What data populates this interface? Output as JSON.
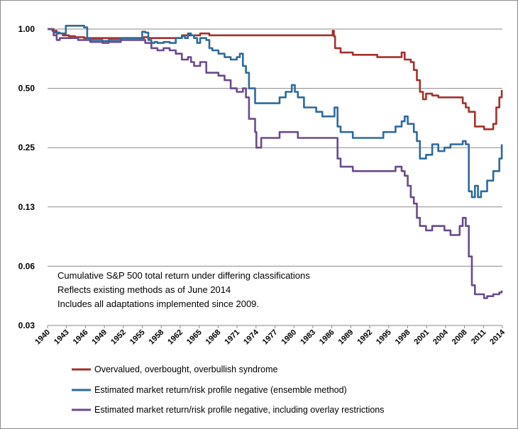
{
  "chart_data": {
    "type": "line",
    "y_scale": "log",
    "ylim": [
      0.03,
      1.2
    ],
    "xlim": [
      1940,
      2014.5
    ],
    "y_ticks": [
      "1.00",
      "0.50",
      "0.25",
      "0.13",
      "0.06",
      "0.03"
    ],
    "y_tick_values": [
      1.0,
      0.5,
      0.25,
      0.125,
      0.0625,
      0.03125
    ],
    "x_ticks": [
      "1940",
      "1943",
      "1946",
      "1949",
      "1952",
      "1955",
      "1958",
      "1962",
      "1965",
      "1968",
      "1971",
      "1974",
      "1977",
      "1980",
      "1983",
      "1986",
      "1989",
      "1992",
      "1995",
      "1998",
      "2001",
      "2004",
      "2008",
      "2011",
      "2014"
    ],
    "grid": "horizontal",
    "legend_position": "bottom",
    "annotations": [
      "Cumulative S&P 500 total return under differing classifications",
      "Reflects existing methods as of June 2014",
      "Includes all adaptations implemented since 2009."
    ],
    "series": [
      {
        "name": "Overvalued, overbought, overbullish syndrome",
        "color": "#a4302c",
        "x": [
          1940.0,
          1940.8,
          1941.5,
          1942.5,
          1943.5,
          1944.5,
          1945.5,
          1946.0,
          1948.0,
          1951.0,
          1954.0,
          1955.2,
          1955.8,
          1956.5,
          1957.0,
          1958.0,
          1960.0,
          1961.5,
          1962.0,
          1963.0,
          1964.0,
          1965.0,
          1966.0,
          1966.5,
          1968.0,
          1970.0,
          1975.0,
          1980.0,
          1986.5,
          1986.7,
          1986.9,
          1987.1,
          1988.0,
          1990.0,
          1994.0,
          1997.5,
          1998.0,
          1998.5,
          1999.0,
          1999.5,
          2000.0,
          2000.5,
          2001.0,
          2001.5,
          2002.0,
          2003.0,
          2004.0,
          2005.0,
          2006.0,
          2007.0,
          2008.0,
          2008.5,
          2009.0,
          2010.0,
          2011.0,
          2011.5,
          2012.0,
          2013.0,
          2013.5,
          2014.0,
          2014.4
        ],
        "y": [
          1.0,
          0.98,
          0.95,
          0.93,
          0.92,
          0.91,
          0.91,
          0.9,
          0.9,
          0.9,
          0.9,
          0.9,
          0.91,
          0.9,
          0.9,
          0.9,
          0.9,
          0.9,
          0.93,
          0.93,
          0.93,
          0.95,
          0.95,
          0.93,
          0.93,
          0.93,
          0.93,
          0.93,
          0.93,
          0.98,
          0.92,
          0.8,
          0.76,
          0.74,
          0.72,
          0.72,
          0.76,
          0.7,
          0.7,
          0.68,
          0.62,
          0.55,
          0.48,
          0.44,
          0.47,
          0.46,
          0.45,
          0.45,
          0.45,
          0.45,
          0.42,
          0.4,
          0.38,
          0.32,
          0.32,
          0.31,
          0.31,
          0.33,
          0.4,
          0.45,
          0.49
        ]
      },
      {
        "name": "Estimated market return/risk profile negative (ensemble method)",
        "color": "#2e6a9c",
        "x": [
          1940.0,
          1941.0,
          1942.0,
          1943.0,
          1944.0,
          1945.0,
          1946.0,
          1946.5,
          1947.0,
          1948.0,
          1949.0,
          1950.0,
          1951.0,
          1952.0,
          1953.0,
          1954.0,
          1955.0,
          1955.5,
          1956.0,
          1956.5,
          1957.0,
          1957.5,
          1958.0,
          1959.0,
          1960.0,
          1961.0,
          1962.0,
          1962.5,
          1963.0,
          1963.5,
          1964.0,
          1964.5,
          1965.0,
          1966.0,
          1966.5,
          1967.0,
          1968.0,
          1969.0,
          1970.0,
          1971.0,
          1971.5,
          1972.0,
          1972.5,
          1973.0,
          1974.0,
          1975.0,
          1976.0,
          1977.0,
          1978.0,
          1979.0,
          1980.0,
          1980.5,
          1981.0,
          1982.0,
          1983.0,
          1984.0,
          1985.0,
          1986.0,
          1987.0,
          1987.5,
          1988.0,
          1989.0,
          1990.0,
          1991.0,
          1992.0,
          1993.0,
          1994.0,
          1995.0,
          1996.0,
          1997.0,
          1998.0,
          1998.5,
          1999.0,
          2000.0,
          2000.5,
          2001.0,
          2002.0,
          2003.0,
          2004.0,
          2005.0,
          2006.0,
          2007.0,
          2008.0,
          2008.5,
          2009.0,
          2009.5,
          2010.0,
          2010.5,
          2011.0,
          2012.0,
          2013.0,
          2014.0,
          2014.4
        ],
        "y": [
          1.0,
          0.96,
          0.95,
          1.04,
          1.04,
          1.04,
          1.02,
          0.9,
          0.88,
          0.88,
          0.87,
          0.88,
          0.88,
          0.9,
          0.9,
          0.9,
          0.9,
          0.97,
          0.96,
          0.88,
          0.85,
          0.86,
          0.85,
          0.86,
          0.85,
          0.9,
          0.92,
          0.9,
          0.95,
          0.93,
          0.9,
          0.85,
          0.9,
          0.88,
          0.8,
          0.78,
          0.75,
          0.72,
          0.7,
          0.72,
          0.75,
          0.65,
          0.6,
          0.5,
          0.42,
          0.42,
          0.42,
          0.42,
          0.45,
          0.48,
          0.52,
          0.48,
          0.45,
          0.4,
          0.4,
          0.38,
          0.36,
          0.36,
          0.4,
          0.32,
          0.3,
          0.3,
          0.28,
          0.28,
          0.28,
          0.28,
          0.28,
          0.3,
          0.3,
          0.32,
          0.34,
          0.36,
          0.33,
          0.3,
          0.27,
          0.22,
          0.23,
          0.26,
          0.24,
          0.25,
          0.26,
          0.26,
          0.27,
          0.26,
          0.15,
          0.14,
          0.16,
          0.14,
          0.15,
          0.17,
          0.19,
          0.22,
          0.26
        ]
      },
      {
        "name": "Estimated market return/risk profile negative, including overlay restrictions",
        "color": "#6a4b8c",
        "x": [
          1940.0,
          1941.0,
          1941.5,
          1942.0,
          1943.0,
          1944.0,
          1945.0,
          1946.0,
          1947.0,
          1948.0,
          1949.0,
          1950.0,
          1951.0,
          1952.0,
          1953.0,
          1954.0,
          1955.0,
          1955.5,
          1956.0,
          1957.0,
          1958.0,
          1959.0,
          1960.0,
          1961.0,
          1962.0,
          1963.0,
          1963.5,
          1964.0,
          1965.0,
          1966.0,
          1967.0,
          1968.0,
          1969.0,
          1970.0,
          1971.0,
          1972.0,
          1972.5,
          1973.0,
          1974.0,
          1974.2,
          1975.0,
          1976.0,
          1977.0,
          1978.0,
          1979.0,
          1980.0,
          1981.0,
          1982.0,
          1983.0,
          1984.0,
          1985.0,
          1986.0,
          1987.0,
          1987.5,
          1988.0,
          1989.0,
          1990.0,
          1991.0,
          1992.0,
          1993.0,
          1994.0,
          1995.0,
          1996.0,
          1997.0,
          1998.0,
          1998.5,
          1999.0,
          1999.5,
          2000.0,
          2000.5,
          2001.0,
          2001.5,
          2002.0,
          2003.0,
          2004.0,
          2005.0,
          2006.0,
          2007.0,
          2007.5,
          2008.0,
          2008.5,
          2009.0,
          2009.5,
          2010.0,
          2011.0,
          2011.5,
          2012.0,
          2013.0,
          2014.0,
          2014.4
        ],
        "y": [
          1.0,
          0.93,
          0.88,
          0.9,
          0.9,
          0.9,
          0.88,
          0.88,
          0.86,
          0.86,
          0.85,
          0.86,
          0.86,
          0.88,
          0.88,
          0.88,
          0.88,
          0.88,
          0.85,
          0.8,
          0.78,
          0.8,
          0.78,
          0.75,
          0.7,
          0.72,
          0.68,
          0.65,
          0.68,
          0.6,
          0.6,
          0.58,
          0.55,
          0.5,
          0.48,
          0.5,
          0.45,
          0.35,
          0.3,
          0.25,
          0.28,
          0.28,
          0.28,
          0.3,
          0.3,
          0.3,
          0.28,
          0.28,
          0.28,
          0.28,
          0.28,
          0.28,
          0.28,
          0.22,
          0.2,
          0.2,
          0.19,
          0.19,
          0.19,
          0.19,
          0.19,
          0.19,
          0.19,
          0.2,
          0.19,
          0.18,
          0.16,
          0.14,
          0.13,
          0.11,
          0.1,
          0.1,
          0.095,
          0.1,
          0.1,
          0.095,
          0.09,
          0.09,
          0.1,
          0.11,
          0.1,
          0.07,
          0.05,
          0.045,
          0.045,
          0.043,
          0.044,
          0.045,
          0.046,
          0.047
        ]
      }
    ]
  }
}
